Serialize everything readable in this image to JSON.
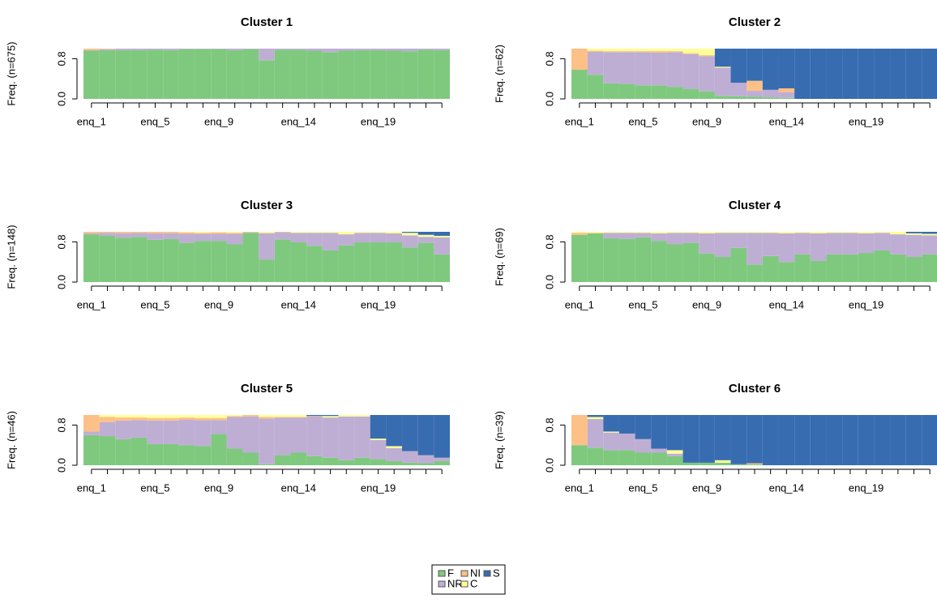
{
  "chart_data": [
    {
      "type": "stacked-bar",
      "title": "Cluster 1",
      "y_label": "Freq. (n=675)",
      "categories": [
        "enq_1",
        null,
        null,
        null,
        "enq_5",
        null,
        null,
        null,
        "enq_9",
        null,
        null,
        null,
        null,
        "enq_14",
        null,
        null,
        null,
        null,
        "enq_19",
        null,
        null,
        null,
        null
      ],
      "ylim": [
        0,
        1
      ],
      "yticks": [
        {
          "value": 0,
          "label": "0.0"
        },
        0.8
      ],
      "series": [
        {
          "name": "F",
          "color": "#7fc97f",
          "values": [
            0.96,
            0.97,
            0.97,
            0.97,
            0.98,
            0.97,
            0.99,
            0.99,
            0.99,
            0.97,
            0.99,
            0.77,
            0.98,
            0.98,
            0.96,
            0.93,
            0.96,
            0.97,
            0.97,
            0.96,
            0.95,
            0.98,
            0.97
          ]
        },
        {
          "name": "NR",
          "color": "#beaed4",
          "values": [
            0.01,
            0.02,
            0.03,
            0.03,
            0.02,
            0.03,
            0.01,
            0.01,
            0.01,
            0.03,
            0.01,
            0.23,
            0.02,
            0.02,
            0.04,
            0.07,
            0.04,
            0.03,
            0.03,
            0.04,
            0.05,
            0.02,
            0.03
          ]
        },
        {
          "name": "NI",
          "color": "#fdc086",
          "values": [
            0.03,
            0.01,
            0,
            0,
            0,
            0,
            0,
            0,
            0,
            0,
            0,
            0,
            0,
            0,
            0,
            0,
            0,
            0,
            0,
            0,
            0,
            0,
            0
          ]
        },
        {
          "name": "C",
          "color": "#ffff99",
          "values": [
            0,
            0,
            0,
            0,
            0,
            0,
            0,
            0,
            0,
            0,
            0,
            0,
            0,
            0,
            0,
            0,
            0,
            0,
            0,
            0,
            0,
            0,
            0
          ]
        },
        {
          "name": "S",
          "color": "#386cb0",
          "values": [
            0,
            0,
            0,
            0,
            0,
            0,
            0,
            0,
            0,
            0,
            0,
            0,
            0,
            0,
            0,
            0,
            0,
            0,
            0,
            0,
            0,
            0,
            0
          ]
        }
      ]
    },
    {
      "type": "stacked-bar",
      "title": "Cluster 2",
      "y_label": "Freq. (n=62)",
      "categories": [
        "enq_1",
        null,
        null,
        null,
        "enq_5",
        null,
        null,
        null,
        "enq_9",
        null,
        null,
        null,
        null,
        "enq_14",
        null,
        null,
        null,
        null,
        "enq_19",
        null,
        null,
        null,
        null
      ],
      "ylim": [
        0,
        1
      ],
      "yticks": [
        {
          "value": 0,
          "label": "0.0"
        },
        0.8
      ],
      "series": [
        {
          "name": "F",
          "color": "#7fc97f",
          "values": [
            0.58,
            0.48,
            0.31,
            0.3,
            0.27,
            0.27,
            0.24,
            0.2,
            0.15,
            0.06,
            0.05,
            0.04,
            0.03,
            0.02,
            0,
            0,
            0,
            0,
            0,
            0,
            0,
            0,
            0
          ]
        },
        {
          "name": "NR",
          "color": "#beaed4",
          "values": [
            0,
            0.46,
            0.62,
            0.63,
            0.66,
            0.65,
            0.69,
            0.69,
            0.7,
            0.56,
            0.27,
            0.12,
            0.15,
            0.11,
            0,
            0,
            0,
            0,
            0,
            0,
            0,
            0,
            0
          ]
        },
        {
          "name": "NI",
          "color": "#fdc086",
          "values": [
            0.42,
            0.02,
            0.02,
            0.02,
            0.02,
            0.03,
            0.02,
            0.02,
            0.02,
            0,
            0,
            0.2,
            0,
            0.08,
            0,
            0,
            0,
            0,
            0,
            0,
            0,
            0,
            0
          ]
        },
        {
          "name": "C",
          "color": "#ffff99",
          "values": [
            0,
            0.04,
            0.05,
            0.05,
            0.05,
            0.05,
            0.05,
            0.09,
            0.13,
            0.02,
            0,
            0,
            0,
            0,
            0,
            0,
            0,
            0,
            0,
            0,
            0,
            0,
            0
          ]
        },
        {
          "name": "S",
          "color": "#386cb0",
          "values": [
            0,
            0,
            0,
            0,
            0,
            0,
            0,
            0,
            0,
            0.36,
            0.68,
            0.64,
            0.82,
            0.79,
            1,
            1,
            1,
            1,
            1,
            1,
            1,
            1,
            1
          ]
        }
      ]
    },
    {
      "type": "stacked-bar",
      "title": "Cluster 3",
      "y_label": "Freq. (n=148)",
      "categories": [
        "enq_1",
        null,
        null,
        null,
        "enq_5",
        null,
        null,
        null,
        "enq_9",
        null,
        null,
        null,
        null,
        "enq_14",
        null,
        null,
        null,
        null,
        "enq_19",
        null,
        null,
        null,
        null
      ],
      "ylim": [
        0,
        1
      ],
      "yticks": [
        {
          "value": 0,
          "label": "0.0"
        },
        0.8
      ],
      "series": [
        {
          "name": "F",
          "color": "#7fc97f",
          "values": [
            0.95,
            0.92,
            0.88,
            0.9,
            0.84,
            0.86,
            0.78,
            0.82,
            0.82,
            0.75,
            0.98,
            0.45,
            0.85,
            0.79,
            0.72,
            0.63,
            0.73,
            0.79,
            0.79,
            0.79,
            0.69,
            0.78,
            0.55
          ]
        },
        {
          "name": "NR",
          "color": "#beaed4",
          "values": [
            0.02,
            0.06,
            0.09,
            0.08,
            0.13,
            0.11,
            0.18,
            0.14,
            0.14,
            0.21,
            0.01,
            0.52,
            0.14,
            0.19,
            0.26,
            0.35,
            0.22,
            0.19,
            0.19,
            0.18,
            0.24,
            0.12,
            0.34
          ]
        },
        {
          "name": "NI",
          "color": "#fdc086",
          "values": [
            0.03,
            0.02,
            0.03,
            0.02,
            0.03,
            0.03,
            0.03,
            0.02,
            0.03,
            0.02,
            0.01,
            0.01,
            0.01,
            0,
            0,
            0,
            0,
            0,
            0,
            0,
            0,
            0,
            0
          ]
        },
        {
          "name": "C",
          "color": "#ffff99",
          "values": [
            0,
            0,
            0,
            0,
            0,
            0,
            0.01,
            0.02,
            0.01,
            0.02,
            0,
            0.02,
            0,
            0.02,
            0.02,
            0.02,
            0.05,
            0.02,
            0.02,
            0.03,
            0.05,
            0.04,
            0.03
          ]
        },
        {
          "name": "S",
          "color": "#386cb0",
          "values": [
            0,
            0,
            0,
            0,
            0,
            0,
            0,
            0,
            0,
            0,
            0,
            0,
            0,
            0,
            0,
            0,
            0,
            0,
            0,
            0,
            0.02,
            0.06,
            0.08
          ]
        }
      ]
    },
    {
      "type": "stacked-bar",
      "title": "Cluster 4",
      "y_label": "Freq. (n=69)",
      "categories": [
        "enq_1",
        null,
        null,
        null,
        "enq_5",
        null,
        null,
        null,
        "enq_9",
        null,
        null,
        null,
        null,
        "enq_14",
        null,
        null,
        null,
        null,
        "enq_19",
        null,
        null,
        null,
        null
      ],
      "ylim": [
        0,
        1
      ],
      "yticks": [
        {
          "value": 0,
          "label": "0.0"
        },
        0.8
      ],
      "series": [
        {
          "name": "F",
          "color": "#7fc97f",
          "values": [
            0.94,
            0.97,
            0.87,
            0.86,
            0.89,
            0.82,
            0.75,
            0.78,
            0.57,
            0.5,
            0.68,
            0.35,
            0.52,
            0.4,
            0.55,
            0.42,
            0.55,
            0.55,
            0.58,
            0.63,
            0.55,
            0.5,
            0.55
          ]
        },
        {
          "name": "NR",
          "color": "#beaed4",
          "values": [
            0,
            0,
            0.11,
            0.12,
            0.09,
            0.15,
            0.23,
            0.2,
            0.4,
            0.48,
            0.3,
            0.63,
            0.46,
            0.57,
            0.43,
            0.55,
            0.43,
            0.43,
            0.39,
            0.35,
            0.4,
            0.44,
            0.38
          ]
        },
        {
          "name": "NI",
          "color": "#fdc086",
          "values": [
            0.04,
            0.01,
            0,
            0,
            0,
            0,
            0,
            0,
            0,
            0,
            0,
            0,
            0,
            0,
            0,
            0,
            0,
            0,
            0,
            0,
            0,
            0,
            0
          ]
        },
        {
          "name": "C",
          "color": "#ffff99",
          "values": [
            0.02,
            0.02,
            0.02,
            0.02,
            0.02,
            0.03,
            0.02,
            0.02,
            0.03,
            0.02,
            0.02,
            0.02,
            0.02,
            0.03,
            0.02,
            0.03,
            0.02,
            0.02,
            0.03,
            0.02,
            0.05,
            0.03,
            0.03
          ]
        },
        {
          "name": "S",
          "color": "#386cb0",
          "values": [
            0,
            0,
            0,
            0,
            0,
            0,
            0,
            0,
            0,
            0,
            0,
            0,
            0,
            0,
            0,
            0,
            0,
            0,
            0,
            0,
            0,
            0.03,
            0.04
          ]
        }
      ]
    },
    {
      "type": "stacked-bar",
      "title": "Cluster 5",
      "y_label": "Freq. (n=46)",
      "categories": [
        "enq_1",
        null,
        null,
        null,
        "enq_5",
        null,
        null,
        null,
        "enq_9",
        null,
        null,
        null,
        null,
        "enq_14",
        null,
        null,
        null,
        null,
        "enq_19",
        null,
        null,
        null,
        null
      ],
      "ylim": [
        0,
        1
      ],
      "yticks": [
        {
          "value": 0,
          "label": "0.0"
        },
        0.8
      ],
      "series": [
        {
          "name": "F",
          "color": "#7fc97f",
          "values": [
            0.6,
            0.58,
            0.52,
            0.55,
            0.42,
            0.42,
            0.4,
            0.38,
            0.62,
            0.33,
            0.25,
            0.02,
            0.2,
            0.25,
            0.18,
            0.15,
            0.1,
            0.15,
            0.12,
            0.08,
            0.05,
            0.04,
            0.08
          ]
        },
        {
          "name": "NR",
          "color": "#beaed4",
          "values": [
            0.07,
            0.28,
            0.37,
            0.35,
            0.47,
            0.47,
            0.51,
            0.52,
            0.28,
            0.63,
            0.72,
            0.91,
            0.75,
            0.7,
            0.79,
            0.8,
            0.87,
            0.82,
            0.38,
            0.26,
            0.23,
            0.16,
            0.07
          ]
        },
        {
          "name": "NI",
          "color": "#fdc086",
          "values": [
            0.33,
            0.1,
            0.06,
            0.05,
            0.05,
            0.05,
            0.04,
            0.04,
            0.04,
            0.02,
            0.03,
            0.03,
            0.01,
            0.01,
            0.01,
            0,
            0,
            0,
            0,
            0,
            0,
            0,
            0
          ]
        },
        {
          "name": "C",
          "color": "#ffff99",
          "values": [
            0,
            0.04,
            0.05,
            0.05,
            0.06,
            0.06,
            0.05,
            0.06,
            0.06,
            0.02,
            0,
            0.04,
            0.04,
            0.04,
            0,
            0.03,
            0.03,
            0.03,
            0.03,
            0.04,
            0,
            0,
            0
          ]
        },
        {
          "name": "S",
          "color": "#386cb0",
          "values": [
            0,
            0,
            0,
            0,
            0,
            0,
            0,
            0,
            0,
            0,
            0,
            0,
            0,
            0,
            0.02,
            0.02,
            0,
            0,
            0.47,
            0.62,
            0.72,
            0.8,
            0.85
          ]
        }
      ]
    },
    {
      "type": "stacked-bar",
      "title": "Cluster 6",
      "y_label": "Freq. (n=39)",
      "categories": [
        "enq_1",
        null,
        null,
        null,
        "enq_5",
        null,
        null,
        null,
        "enq_9",
        null,
        null,
        null,
        null,
        "enq_14",
        null,
        null,
        null,
        null,
        "enq_19",
        null,
        null,
        null,
        null
      ],
      "ylim": [
        0,
        1
      ],
      "yticks": [
        {
          "value": 0,
          "label": "0.0"
        },
        0.8
      ],
      "series": [
        {
          "name": "F",
          "color": "#7fc97f",
          "values": [
            0.4,
            0.35,
            0.3,
            0.3,
            0.25,
            0.25,
            0.18,
            0.05,
            0.05,
            0.05,
            0.02,
            0.02,
            0,
            0,
            0,
            0,
            0,
            0,
            0,
            0,
            0,
            0,
            0
          ]
        },
        {
          "name": "NR",
          "color": "#beaed4",
          "values": [
            0,
            0.57,
            0.35,
            0.33,
            0.27,
            0.08,
            0.05,
            0,
            0,
            0,
            0,
            0,
            0,
            0,
            0,
            0,
            0,
            0,
            0,
            0,
            0,
            0,
            0
          ]
        },
        {
          "name": "NI",
          "color": "#fdc086",
          "values": [
            0.6,
            0,
            0,
            0,
            0,
            0,
            0,
            0,
            0,
            0,
            0,
            0.02,
            0,
            0,
            0,
            0,
            0,
            0,
            0,
            0,
            0,
            0,
            0
          ]
        },
        {
          "name": "C",
          "color": "#ffff99",
          "values": [
            0,
            0.04,
            0.02,
            0,
            0,
            0,
            0.07,
            0,
            0,
            0.05,
            0,
            0,
            0,
            0,
            0,
            0,
            0,
            0,
            0,
            0,
            0,
            0,
            0
          ]
        },
        {
          "name": "S",
          "color": "#386cb0",
          "values": [
            0,
            0.04,
            0.33,
            0.37,
            0.48,
            0.67,
            0.7,
            0.95,
            0.95,
            0.9,
            0.98,
            0.96,
            1,
            1,
            1,
            1,
            1,
            1,
            1,
            1,
            1,
            1,
            1
          ]
        }
      ]
    }
  ]
}
